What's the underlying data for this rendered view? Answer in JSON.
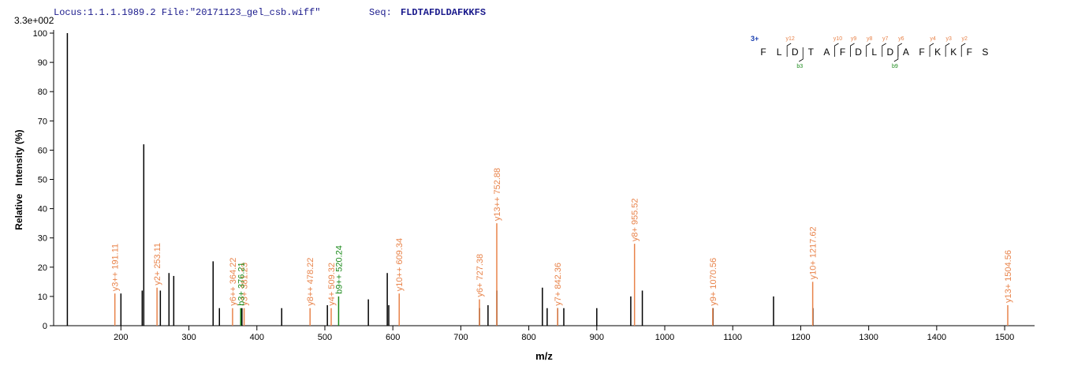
{
  "chart_data": {
    "type": "spectrum",
    "header": "Locus:1.1.1.1989.2 File:\"20171123_gel_csb.wiff\"",
    "seq_label": "Seq:",
    "sequence": "FLDTAFDLDAFKKFS",
    "scale_label": "3.3e+002",
    "x_label": "m/z",
    "y_label": "Relative   Intensity (%)",
    "xlim": [
      101,
      1544
    ],
    "ylim": [
      0,
      100
    ],
    "xticks": [
      200,
      300,
      400,
      500,
      600,
      700,
      800,
      900,
      1000,
      1100,
      1200,
      1300,
      1400,
      1500
    ],
    "yticks": [
      0,
      10,
      20,
      30,
      40,
      50,
      60,
      70,
      80,
      90,
      100
    ],
    "peptide": {
      "charge": "3+",
      "letters": [
        "F",
        "L",
        "D",
        "T",
        "A",
        "F",
        "D",
        "L",
        "D",
        "A",
        "F",
        "K",
        "K",
        "F",
        "S"
      ],
      "y_ions": [
        "y12",
        "y10",
        "y9",
        "y8",
        "y7",
        "y6",
        "y4",
        "y3",
        "y2"
      ],
      "b_ions": [
        "b3",
        "b9"
      ]
    },
    "series": [
      {
        "color": "#000000",
        "x": [
          121.2,
          200,
          231.3,
          233.6,
          258,
          270.7,
          277.7,
          335.6,
          344.9,
          378,
          436.5,
          503.7,
          564,
          591.8,
          594,
          727.5,
          740,
          753,
          820,
          827,
          842.5,
          851.5,
          900,
          950,
          967,
          1071,
          1160,
          1218
        ],
        "values": [
          100,
          11,
          12,
          62,
          12,
          18,
          17,
          22,
          6,
          6,
          6,
          7,
          9,
          18,
          7,
          6,
          7,
          12,
          13,
          6,
          6,
          6,
          6,
          10,
          12,
          6,
          10,
          6
        ]
      },
      {
        "color": "#e8834a",
        "x": [
          191.11,
          253.11,
          364.22,
          381.23,
          478.22,
          509.32,
          609.34,
          727.38,
          752.88,
          842.36,
          955.52,
          1070.56,
          1217.62,
          1504.56
        ],
        "values": [
          11,
          13,
          6,
          6,
          6,
          6,
          11,
          9,
          35,
          6,
          28,
          6,
          15,
          7
        ],
        "labels": [
          "y3++ 191.11",
          "y2+ 253.11",
          "y6++ 364.22",
          "y3+ 381.23",
          "y8++ 478.22",
          "y4+ 509.32",
          "y10++ 609.34",
          "y6+ 727.38",
          "y13++ 752.88",
          "y7+ 842.36",
          "y8+ 955.52",
          "y9+ 1070.56",
          "y10+ 1217.62",
          "y13+ 1504.56"
        ]
      },
      {
        "color": "#1a8a1a",
        "x": [
          376.21,
          520.24
        ],
        "values": [
          6,
          10
        ],
        "labels": [
          "b3+ 376.21",
          "b9++ 520.24"
        ]
      }
    ]
  }
}
